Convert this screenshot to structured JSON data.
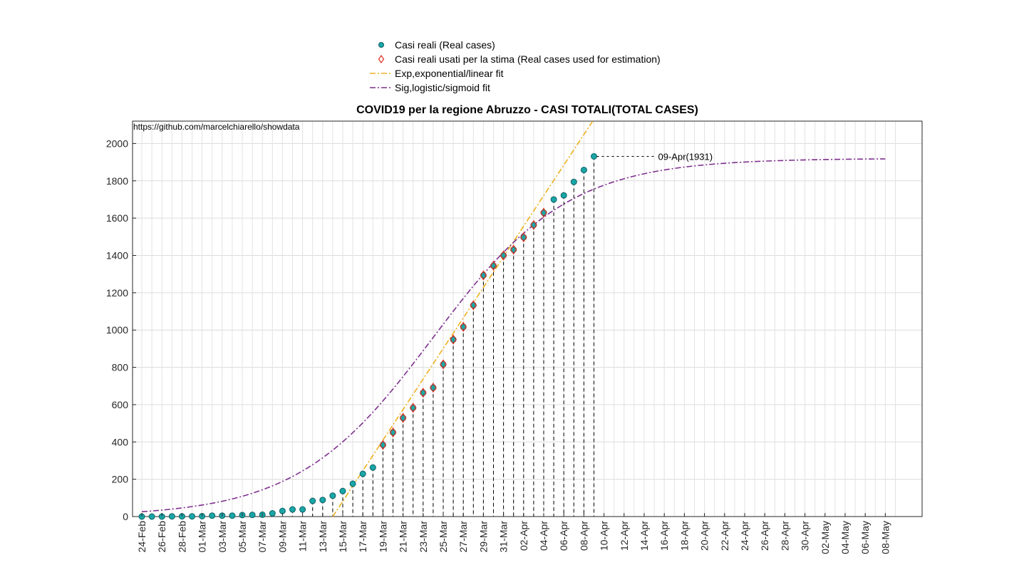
{
  "chart_data": {
    "type": "scatter",
    "title": "COVID19 per la regione Abruzzo - CASI TOTALI(TOTAL CASES)",
    "source_note": "https://github.com/marcelchiarello/showdata",
    "annotation": "09-Apr(1931)",
    "xlabel": "",
    "ylabel": "",
    "ylim": [
      0,
      2120
    ],
    "yticks": [
      "0",
      "200",
      "400",
      "600",
      "800",
      "1000",
      "1200",
      "1400",
      "1600",
      "1800",
      "2000"
    ],
    "xtick_labels": [
      "24-Feb",
      "26-Feb",
      "28-Feb",
      "01-Mar",
      "03-Mar",
      "05-Mar",
      "07-Mar",
      "09-Mar",
      "11-Mar",
      "13-Mar",
      "15-Mar",
      "17-Mar",
      "19-Mar",
      "21-Mar",
      "23-Mar",
      "25-Mar",
      "27-Mar",
      "29-Mar",
      "31-Mar",
      "02-Apr",
      "04-Apr",
      "06-Apr",
      "08-Apr",
      "10-Apr",
      "12-Apr",
      "14-Apr",
      "16-Apr",
      "18-Apr",
      "20-Apr",
      "22-Apr",
      "24-Apr",
      "26-Apr",
      "28-Apr",
      "30-Apr",
      "02-May",
      "04-May",
      "06-May",
      "08-May"
    ],
    "grid": true,
    "legend_position": "top-center",
    "legend": [
      {
        "label": "Casi reali (Real cases)",
        "marker": "circle",
        "color": "#1aa6a6"
      },
      {
        "label": "Casi reali usati per la stima (Real cases used for estimation)",
        "marker": "diamond",
        "color": "#e03020"
      },
      {
        "label": "Exp,exponential/linear fit",
        "marker": "dashdot",
        "color": "#edb120"
      },
      {
        "label": "Sig,logistic/sigmoid fit",
        "marker": "dashdot",
        "color": "#7e2f8e"
      }
    ],
    "series": [
      {
        "name": "Casi reali (Real cases)",
        "x": [
          "24-Feb",
          "25-Feb",
          "26-Feb",
          "27-Feb",
          "28-Feb",
          "29-Feb",
          "01-Mar",
          "02-Mar",
          "03-Mar",
          "04-Mar",
          "05-Mar",
          "06-Mar",
          "07-Mar",
          "08-Mar",
          "09-Mar",
          "10-Mar",
          "11-Mar",
          "12-Mar",
          "13-Mar",
          "14-Mar",
          "15-Mar",
          "16-Mar",
          "17-Mar",
          "18-Mar",
          "19-Mar",
          "20-Mar",
          "21-Mar",
          "22-Mar",
          "23-Mar",
          "24-Mar",
          "25-Mar",
          "26-Mar",
          "27-Mar",
          "28-Mar",
          "29-Mar",
          "30-Mar",
          "31-Mar",
          "01-Apr",
          "02-Apr",
          "03-Apr",
          "04-Apr",
          "05-Apr",
          "06-Apr",
          "07-Apr",
          "08-Apr",
          "09-Apr"
        ],
        "values": [
          0,
          0,
          0,
          1,
          1,
          1,
          2,
          5,
          5,
          5,
          8,
          9,
          10,
          17,
          30,
          38,
          38,
          84,
          89,
          112,
          137,
          176,
          229,
          263,
          384,
          451,
          529,
          583,
          664,
          691,
          816,
          949,
          1017,
          1133,
          1293,
          1345,
          1400,
          1431,
          1497,
          1563,
          1629,
          1700,
          1722,
          1794,
          1858,
          1931
        ]
      },
      {
        "name": "Casi reali usati per la stima (Real cases used for estimation)",
        "x": [
          "19-Mar",
          "20-Mar",
          "21-Mar",
          "22-Mar",
          "23-Mar",
          "24-Mar",
          "25-Mar",
          "26-Mar",
          "27-Mar",
          "28-Mar",
          "29-Mar",
          "30-Mar",
          "31-Mar",
          "01-Apr",
          "02-Apr",
          "03-Apr",
          "04-Apr"
        ],
        "values": [
          384,
          451,
          529,
          583,
          664,
          691,
          816,
          949,
          1017,
          1133,
          1293,
          1345,
          1400,
          1431,
          1497,
          1563,
          1629
        ]
      },
      {
        "name": "Exp,exponential/linear fit",
        "x": [
          "14-Mar",
          "09-Apr"
        ],
        "values": [
          0,
          2130
        ]
      },
      {
        "name": "Sig,logistic/sigmoid fit",
        "model": "logistic",
        "K": 1920,
        "midpoint": "24-Mar",
        "rate": 0.148,
        "x_range": [
          "24-Feb",
          "08-May"
        ]
      }
    ]
  }
}
